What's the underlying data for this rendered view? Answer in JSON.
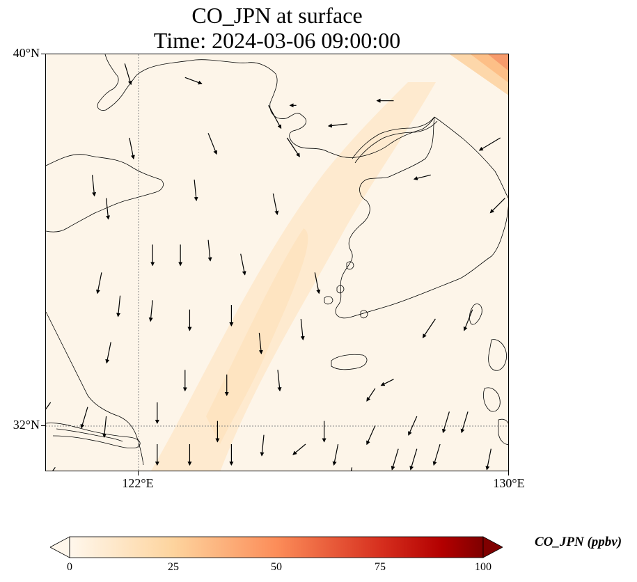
{
  "title": {
    "line1": "CO_JPN at surface",
    "line2": "Time: 2024-03-06 09:00:00"
  },
  "axes": {
    "lat_ticks": [
      "40°N",
      "32°N"
    ],
    "lon_ticks": [
      "122°E",
      "130°E"
    ],
    "lon_range": [
      120,
      130
    ],
    "lat_range": [
      31,
      40
    ],
    "gridlines": "dotted, at 122°E and 32°N"
  },
  "colorbar": {
    "label": "CO_JPN (ppbv)",
    "ticks": [
      "0",
      "25",
      "50",
      "75",
      "100"
    ],
    "range": [
      0,
      100
    ],
    "colormap": "OrRd",
    "extend": "both"
  },
  "colors": {
    "ocean_land_base": "#fdf5e9",
    "plume": "#fde3bf",
    "hotspot_light": "#fdbf87",
    "hotspot_dark": "#f4895b",
    "coastline": "#000000"
  },
  "chart_data": {
    "type": "map",
    "variable": "CO_JPN",
    "units": "ppbv",
    "level": "surface",
    "time": "2024-03-06 09:00:00",
    "field_description_values": {
      "background_ppbv": 2,
      "plume_max_ppbv": 12,
      "northeast_corner_max_ppbv": 50
    },
    "wind_vectors": [
      {
        "lon": 121.7,
        "lat": 39.8,
        "u": 0.3,
        "v": -1.0
      },
      {
        "lon": 123.0,
        "lat": 39.5,
        "u": 0.8,
        "v": -0.3
      },
      {
        "lon": 124.8,
        "lat": 38.9,
        "u": 0.6,
        "v": -1.1
      },
      {
        "lon": 125.4,
        "lat": 38.9,
        "u": -0.3,
        "v": 0.0
      },
      {
        "lon": 127.5,
        "lat": 39.0,
        "u": -0.8,
        "v": 0.0
      },
      {
        "lon": 121.8,
        "lat": 38.2,
        "u": 0.2,
        "v": -1.0
      },
      {
        "lon": 123.5,
        "lat": 38.3,
        "u": 0.4,
        "v": -1.0
      },
      {
        "lon": 125.2,
        "lat": 38.2,
        "u": 0.6,
        "v": -0.9
      },
      {
        "lon": 126.5,
        "lat": 38.5,
        "u": -0.9,
        "v": -0.1
      },
      {
        "lon": 129.8,
        "lat": 38.2,
        "u": -1.0,
        "v": -0.6
      },
      {
        "lon": 121.0,
        "lat": 37.4,
        "u": 0.1,
        "v": -1.0
      },
      {
        "lon": 121.3,
        "lat": 36.9,
        "u": 0.1,
        "v": -1.0
      },
      {
        "lon": 123.2,
        "lat": 37.3,
        "u": 0.1,
        "v": -1.0
      },
      {
        "lon": 124.9,
        "lat": 37.0,
        "u": 0.2,
        "v": -1.0
      },
      {
        "lon": 128.3,
        "lat": 37.4,
        "u": -0.8,
        "v": -0.2
      },
      {
        "lon": 129.9,
        "lat": 36.9,
        "u": -0.7,
        "v": -0.7
      },
      {
        "lon": 122.3,
        "lat": 35.9,
        "u": 0.0,
        "v": -1.0
      },
      {
        "lon": 122.9,
        "lat": 35.9,
        "u": 0.0,
        "v": -1.0
      },
      {
        "lon": 123.5,
        "lat": 36.0,
        "u": 0.1,
        "v": -1.0
      },
      {
        "lon": 124.2,
        "lat": 35.7,
        "u": 0.2,
        "v": -1.0
      },
      {
        "lon": 125.8,
        "lat": 35.3,
        "u": 0.2,
        "v": -1.0
      },
      {
        "lon": 121.2,
        "lat": 35.3,
        "u": -0.2,
        "v": -1.0
      },
      {
        "lon": 121.6,
        "lat": 34.8,
        "u": -0.1,
        "v": -1.0
      },
      {
        "lon": 122.3,
        "lat": 34.7,
        "u": -0.1,
        "v": -1.0
      },
      {
        "lon": 123.1,
        "lat": 34.5,
        "u": 0.0,
        "v": -1.0
      },
      {
        "lon": 124.0,
        "lat": 34.6,
        "u": 0.0,
        "v": -1.0
      },
      {
        "lon": 124.6,
        "lat": 34.0,
        "u": 0.1,
        "v": -1.0
      },
      {
        "lon": 125.5,
        "lat": 34.3,
        "u": 0.1,
        "v": -1.0
      },
      {
        "lon": 121.4,
        "lat": 33.8,
        "u": -0.2,
        "v": -1.0
      },
      {
        "lon": 123.0,
        "lat": 33.2,
        "u": 0.0,
        "v": -1.0
      },
      {
        "lon": 123.9,
        "lat": 33.1,
        "u": 0.0,
        "v": -1.0
      },
      {
        "lon": 125.0,
        "lat": 33.2,
        "u": 0.1,
        "v": -1.0
      },
      {
        "lon": 128.4,
        "lat": 34.3,
        "u": -0.6,
        "v": -0.9
      },
      {
        "lon": 129.2,
        "lat": 34.5,
        "u": -0.4,
        "v": -1.0
      },
      {
        "lon": 127.5,
        "lat": 33.0,
        "u": -0.6,
        "v": -0.3
      },
      {
        "lon": 127.1,
        "lat": 32.8,
        "u": -0.4,
        "v": -0.6
      },
      {
        "lon": 128.0,
        "lat": 32.2,
        "u": -0.4,
        "v": -0.9
      },
      {
        "lon": 128.7,
        "lat": 32.3,
        "u": -0.3,
        "v": -1.0
      },
      {
        "lon": 129.1,
        "lat": 32.3,
        "u": -0.3,
        "v": -1.0
      },
      {
        "lon": 120.9,
        "lat": 32.4,
        "u": -0.3,
        "v": -1.0
      },
      {
        "lon": 121.3,
        "lat": 32.2,
        "u": -0.1,
        "v": -1.0
      },
      {
        "lon": 122.4,
        "lat": 32.5,
        "u": 0.0,
        "v": -1.0
      },
      {
        "lon": 123.7,
        "lat": 32.1,
        "u": 0.0,
        "v": -1.0
      },
      {
        "lon": 126.0,
        "lat": 32.1,
        "u": 0.0,
        "v": -1.0
      },
      {
        "lon": 127.1,
        "lat": 32.0,
        "u": -0.4,
        "v": -0.9
      },
      {
        "lon": 124.7,
        "lat": 31.8,
        "u": -0.1,
        "v": -1.0
      },
      {
        "lon": 126.3,
        "lat": 31.6,
        "u": -0.2,
        "v": -1.0
      },
      {
        "lon": 125.6,
        "lat": 31.6,
        "u": -0.6,
        "v": -0.5
      },
      {
        "lon": 122.4,
        "lat": 31.6,
        "u": 0.0,
        "v": -1.0
      },
      {
        "lon": 123.1,
        "lat": 31.6,
        "u": 0.0,
        "v": -1.0
      },
      {
        "lon": 124.0,
        "lat": 31.6,
        "u": 0.0,
        "v": -1.0
      },
      {
        "lon": 127.6,
        "lat": 31.5,
        "u": -0.3,
        "v": -1.0
      },
      {
        "lon": 128.0,
        "lat": 31.5,
        "u": -0.3,
        "v": -1.0
      },
      {
        "lon": 128.5,
        "lat": 31.6,
        "u": -0.3,
        "v": -1.0
      },
      {
        "lon": 129.6,
        "lat": 31.5,
        "u": -0.2,
        "v": -1.0
      },
      {
        "lon": 126.6,
        "lat": 31.1,
        "u": -0.2,
        "v": -1.0
      },
      {
        "lon": 120.1,
        "lat": 32.5,
        "u": -0.5,
        "v": -0.7
      },
      {
        "lon": 120.2,
        "lat": 31.1,
        "u": -0.5,
        "v": -0.7
      }
    ]
  }
}
